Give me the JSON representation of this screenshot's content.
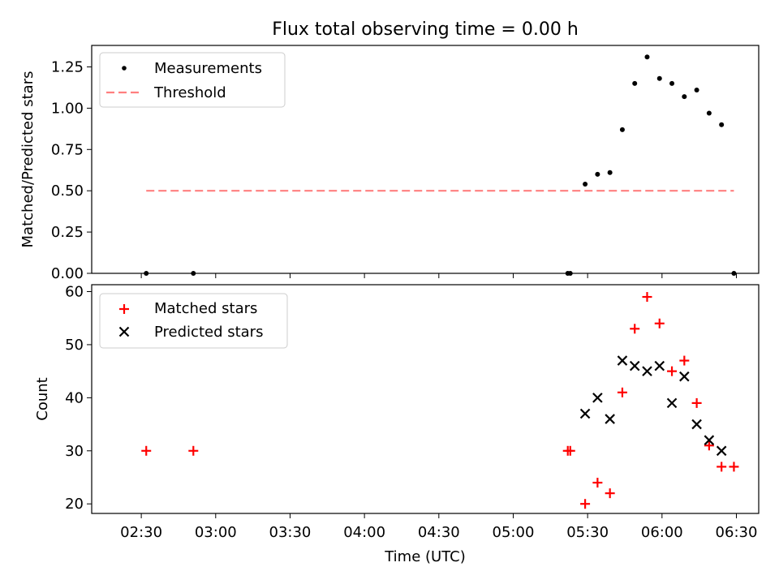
{
  "title": "Flux total observing time = 0.00 h",
  "chart_data": [
    {
      "type": "scatter",
      "ylabel": "Matched/Predicted stars",
      "ylim": [
        0,
        1.38
      ],
      "yticks": [
        0.0,
        0.25,
        0.5,
        0.75,
        1.0,
        1.25
      ],
      "ytick_labels": [
        "0.00",
        "0.25",
        "0.50",
        "0.75",
        "1.00",
        "1.25"
      ],
      "legend_position": "top-left",
      "series": [
        {
          "name": "Measurements",
          "marker": "dot",
          "color": "#000000",
          "x": [
            "02:32",
            "02:51",
            "05:22",
            "05:23",
            "05:29",
            "05:34",
            "05:39",
            "05:44",
            "05:49",
            "05:54",
            "05:59",
            "06:04",
            "06:09",
            "06:14",
            "06:19",
            "06:24",
            "06:29"
          ],
          "y": [
            0.0,
            0.0,
            0.0,
            0.0,
            0.54,
            0.6,
            0.61,
            0.87,
            1.15,
            1.31,
            1.18,
            1.15,
            1.07,
            1.11,
            0.97,
            0.9,
            0.0
          ]
        },
        {
          "name": "Threshold",
          "line_style": "dashed",
          "color": "#ff7f7f",
          "x": [
            "02:32",
            "06:29"
          ],
          "y": [
            0.5,
            0.5
          ]
        }
      ]
    },
    {
      "type": "scatter",
      "xlabel": "Time (UTC)",
      "ylabel": "Count",
      "ylim": [
        18.2,
        61.3
      ],
      "yticks": [
        20,
        30,
        40,
        50,
        60
      ],
      "ytick_labels": [
        "20",
        "30",
        "40",
        "50",
        "60"
      ],
      "xticks": [
        "02:30",
        "03:00",
        "03:30",
        "04:00",
        "04:30",
        "05:00",
        "05:30",
        "06:00",
        "06:30"
      ],
      "xlim": [
        "02:10",
        "06:39"
      ],
      "legend_position": "top-left",
      "series": [
        {
          "name": "Matched stars",
          "marker": "plus",
          "color": "#ff0000",
          "x": [
            "02:32",
            "02:51",
            "05:22",
            "05:23",
            "05:29",
            "05:34",
            "05:39",
            "05:44",
            "05:49",
            "05:54",
            "05:59",
            "06:04",
            "06:09",
            "06:14",
            "06:19",
            "06:24",
            "06:29"
          ],
          "y": [
            30,
            30,
            30,
            30,
            20,
            24,
            22,
            41,
            53,
            59,
            54,
            45,
            47,
            39,
            31,
            27,
            27
          ]
        },
        {
          "name": "Predicted stars",
          "marker": "x",
          "color": "#000000",
          "x": [
            "05:29",
            "05:34",
            "05:39",
            "05:44",
            "05:49",
            "05:54",
            "05:59",
            "06:04",
            "06:09",
            "06:14",
            "06:19",
            "06:24"
          ],
          "y": [
            37,
            40,
            36,
            47,
            46,
            45,
            46,
            39,
            44,
            35,
            32,
            30
          ]
        }
      ]
    }
  ]
}
